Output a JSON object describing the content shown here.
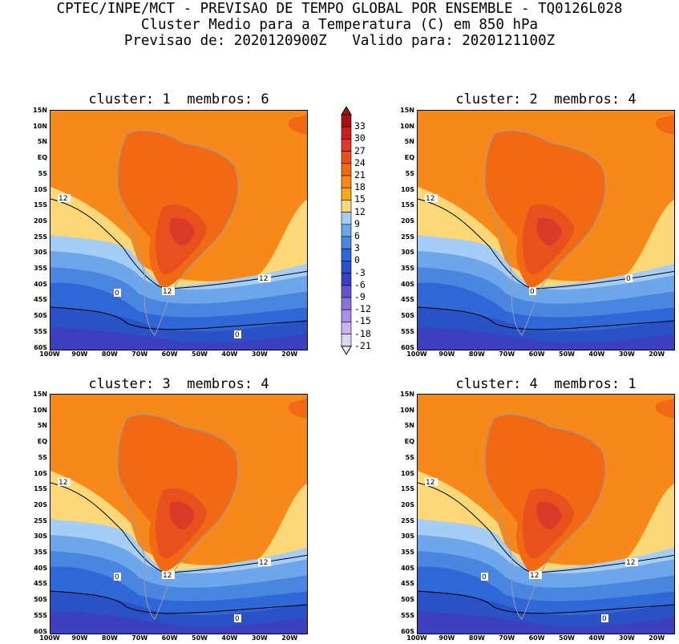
{
  "header": {
    "line1": "CPTEC/INPE/MCT - PREVISAO DE TEMPO GLOBAL POR ENSEMBLE - TQ0126L028",
    "line2": "Cluster Medio para a Temperatura (C) em 850 hPa",
    "line3": "Previsao de: 2020120900Z   Valido para: 2020121100Z"
  },
  "panels": [
    {
      "title": "cluster: 1  membros: 6",
      "contour_labels": [
        "12",
        "12",
        "12",
        "0",
        "0"
      ]
    },
    {
      "title": "cluster: 2  membros: 4",
      "contour_labels": [
        "12",
        "0",
        "0"
      ]
    },
    {
      "title": "cluster: 3  membros: 4",
      "contour_labels": [
        "12",
        "12",
        "12",
        "0",
        "0"
      ]
    },
    {
      "title": "cluster: 4  membros: 1",
      "contour_labels": [
        "12",
        "12",
        "12",
        "0",
        "0"
      ]
    }
  ],
  "lat_ticks": [
    "15N",
    "10N",
    "5N",
    "EQ",
    "5S",
    "10S",
    "15S",
    "20S",
    "25S",
    "30S",
    "35S",
    "40S",
    "45S",
    "50S",
    "55S",
    "60S"
  ],
  "lon_ticks": [
    "100W",
    "90W",
    "80W",
    "70W",
    "60W",
    "50W",
    "40W",
    "30W",
    "20W"
  ],
  "colorbar": {
    "labels": [
      "33",
      "30",
      "27",
      "24",
      "21",
      "18",
      "15",
      "12",
      "9",
      "6",
      "3",
      "0",
      "-3",
      "-6",
      "-9",
      "-12",
      "-15",
      "-18",
      "-21"
    ],
    "colors": [
      "#a50f15",
      "#c8201f",
      "#dc3a28",
      "#e8501e",
      "#f16913",
      "#f7891b",
      "#faa91f",
      "#fdd878",
      "#a6cdf5",
      "#6ea6ec",
      "#4a86e0",
      "#2f68d6",
      "#2a52c6",
      "#3c3fbe",
      "#6a52cf",
      "#8a72dc",
      "#a88fe8",
      "#c7b4f1",
      "#e0d6f7"
    ]
  }
}
